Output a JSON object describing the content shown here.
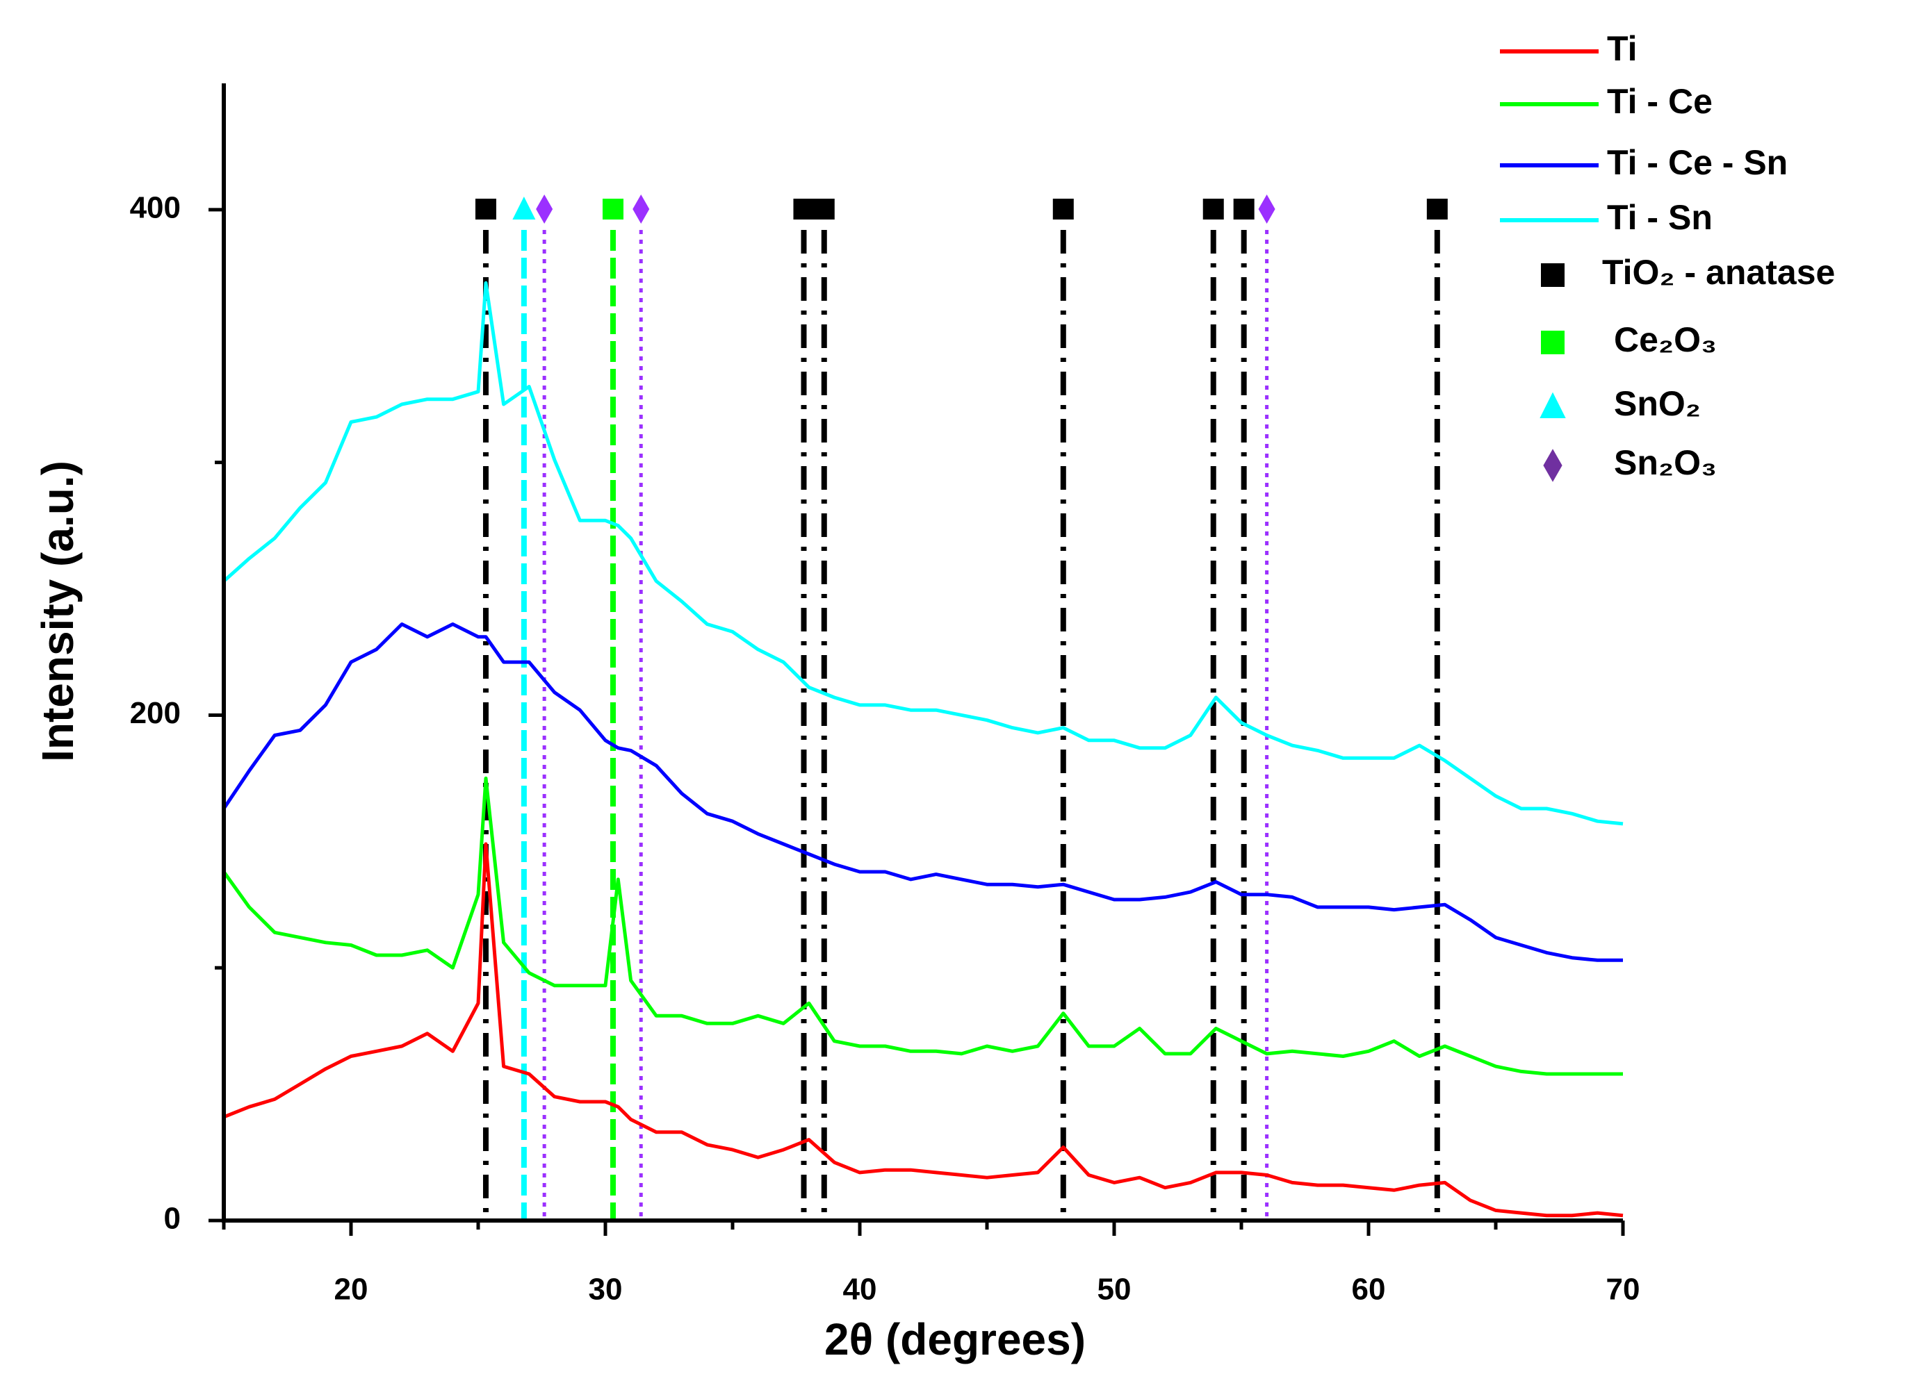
{
  "chart_data": {
    "type": "line",
    "x_label": "2θ (degrees)",
    "y_label": "Intensity (a.u.)",
    "xlim": [
      15,
      70
    ],
    "ylim": [
      0,
      450
    ],
    "xticks": [
      20,
      30,
      40,
      50,
      60,
      70
    ],
    "xminorticks": [
      15,
      25,
      35,
      45,
      55,
      65
    ],
    "yticks": [
      0,
      200,
      400
    ],
    "yminorticks": [
      100,
      300
    ],
    "x": [
      15,
      16,
      17,
      18,
      19,
      20,
      21,
      22,
      23,
      24,
      25,
      25.3,
      26,
      27,
      28,
      29,
      30,
      30.5,
      31,
      32,
      33,
      34,
      35,
      36,
      37,
      38,
      39,
      40,
      41,
      42,
      43,
      44,
      45,
      46,
      47,
      48,
      49,
      50,
      51,
      52,
      53,
      54,
      55,
      56,
      57,
      58,
      59,
      60,
      61,
      62,
      63,
      64,
      65,
      66,
      67,
      68,
      69,
      70
    ],
    "series": [
      {
        "name": "Ti",
        "color": "#ff0000",
        "values": [
          41,
          45,
          48,
          54,
          60,
          65,
          67,
          69,
          74,
          67,
          86,
          149,
          61,
          58,
          49,
          47,
          47,
          45,
          40,
          35,
          35,
          30,
          28,
          25,
          28,
          32,
          23,
          19,
          20,
          20,
          19,
          18,
          17,
          18,
          19,
          29,
          18,
          15,
          17,
          13,
          15,
          19,
          19,
          18,
          15,
          14,
          14,
          13,
          12,
          14,
          15,
          8,
          4,
          3,
          2,
          2,
          3,
          2
        ]
      },
      {
        "name": "Ti - Ce",
        "color": "#00ff00",
        "values": [
          138,
          124,
          114,
          112,
          110,
          109,
          105,
          105,
          107,
          100,
          129,
          175,
          110,
          98,
          93,
          93,
          93,
          135,
          95,
          81,
          81,
          78,
          78,
          81,
          78,
          86,
          71,
          69,
          69,
          67,
          67,
          66,
          69,
          67,
          69,
          82,
          69,
          69,
          76,
          66,
          66,
          76,
          71,
          66,
          67,
          66,
          65,
          67,
          71,
          65,
          69,
          65,
          61,
          59,
          58,
          58,
          58,
          58
        ]
      },
      {
        "name": "Ti - Ce - Sn",
        "color": "#0000ff",
        "values": [
          163,
          178,
          192,
          194,
          204,
          221,
          226,
          236,
          231,
          236,
          231,
          231,
          221,
          221,
          209,
          202,
          190,
          187,
          186,
          180,
          169,
          161,
          158,
          153,
          149,
          145,
          141,
          138,
          138,
          135,
          137,
          135,
          133,
          133,
          132,
          133,
          130,
          127,
          127,
          128,
          130,
          134,
          129,
          129,
          128,
          124,
          124,
          124,
          123,
          124,
          125,
          119,
          112,
          109,
          106,
          104,
          103,
          103
        ]
      },
      {
        "name": "Ti - Sn",
        "color": "#00ffff",
        "values": [
          253,
          262,
          270,
          282,
          292,
          316,
          318,
          323,
          325,
          325,
          328,
          371,
          323,
          330,
          301,
          277,
          277,
          275,
          270,
          253,
          245,
          236,
          233,
          226,
          221,
          211,
          207,
          204,
          204,
          202,
          202,
          200,
          198,
          195,
          193,
          195,
          190,
          190,
          187,
          187,
          192,
          207,
          197,
          192,
          188,
          186,
          183,
          183,
          183,
          188,
          182,
          175,
          168,
          163,
          163,
          161,
          158,
          157
        ]
      }
    ],
    "phases": [
      {
        "name": "TiO₂ - anatase",
        "color": "#000000",
        "marker": "square",
        "line": "dashdot",
        "positions": [
          25.3,
          37.8,
          38.6,
          48.0,
          53.9,
          55.1,
          62.7
        ]
      },
      {
        "name": "Ce₂O₃",
        "color": "#00ff00",
        "marker": "square",
        "line": "dashed",
        "positions": [
          30.3
        ]
      },
      {
        "name": "SnO₂",
        "color": "#00ffff",
        "marker": "triangle",
        "line": "dashed",
        "positions": [
          26.8
        ]
      },
      {
        "name": "Sn₂O₃",
        "color": "#9b30ff",
        "legend_color": "#7030a0",
        "marker": "diamond",
        "line": "dotted",
        "positions": [
          27.6,
          31.4,
          56.0
        ]
      }
    ]
  }
}
